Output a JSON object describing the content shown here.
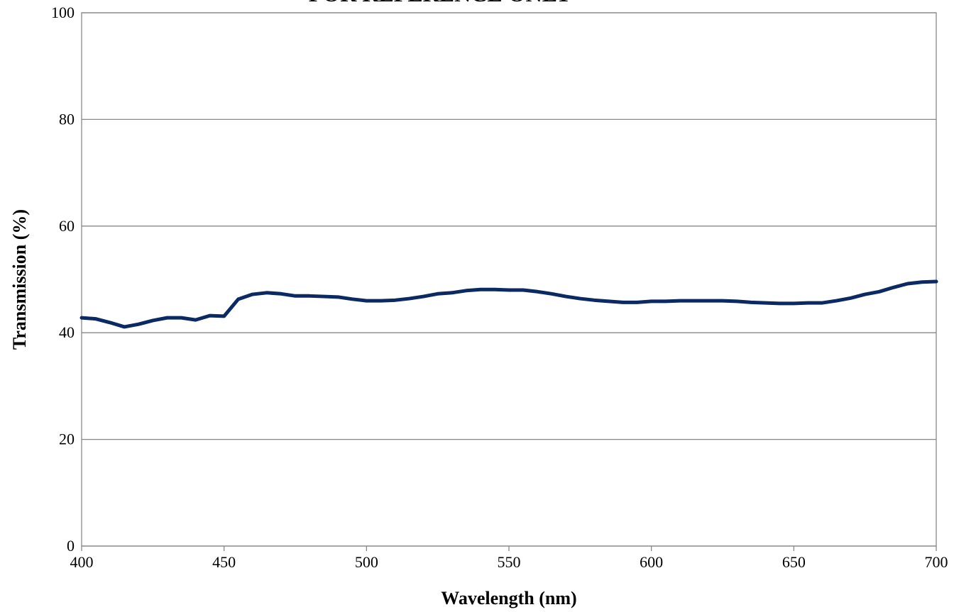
{
  "chart_data": {
    "type": "line",
    "title": "FOR REFERENCE ONLY",
    "x_label": "Wavelength (nm)",
    "y_label": "Transmission (%)",
    "x": [
      400,
      405,
      410,
      415,
      420,
      425,
      430,
      435,
      440,
      445,
      450,
      455,
      460,
      465,
      470,
      475,
      480,
      485,
      490,
      495,
      500,
      505,
      510,
      515,
      520,
      525,
      530,
      535,
      540,
      545,
      550,
      555,
      560,
      565,
      570,
      575,
      580,
      585,
      590,
      595,
      600,
      605,
      610,
      615,
      620,
      625,
      630,
      635,
      640,
      645,
      650,
      655,
      660,
      665,
      670,
      675,
      680,
      685,
      690,
      695,
      700
    ],
    "series": [
      {
        "name": "Transmission",
        "color": "#0b2a63",
        "values": [
          42.8,
          42.6,
          41.9,
          41.1,
          41.6,
          42.3,
          42.8,
          42.8,
          42.4,
          43.2,
          43.1,
          46.3,
          47.2,
          47.5,
          47.3,
          46.9,
          46.9,
          46.8,
          46.7,
          46.3,
          46.0,
          46.0,
          46.1,
          46.4,
          46.8,
          47.3,
          47.5,
          47.9,
          48.1,
          48.1,
          48.0,
          48.0,
          47.7,
          47.3,
          46.8,
          46.4,
          46.1,
          45.9,
          45.7,
          45.7,
          45.9,
          45.9,
          46.0,
          46.0,
          46.0,
          46.0,
          45.9,
          45.7,
          45.6,
          45.5,
          45.5,
          45.6,
          45.6,
          46.0,
          46.5,
          47.2,
          47.7,
          48.5,
          49.2,
          49.5,
          49.6
        ]
      }
    ],
    "xlim": [
      400,
      700
    ],
    "ylim": [
      0,
      100
    ],
    "xticks": [
      400,
      450,
      500,
      550,
      600,
      650,
      700
    ],
    "yticks": [
      0,
      20,
      40,
      60,
      80,
      100
    ],
    "grid": true
  }
}
